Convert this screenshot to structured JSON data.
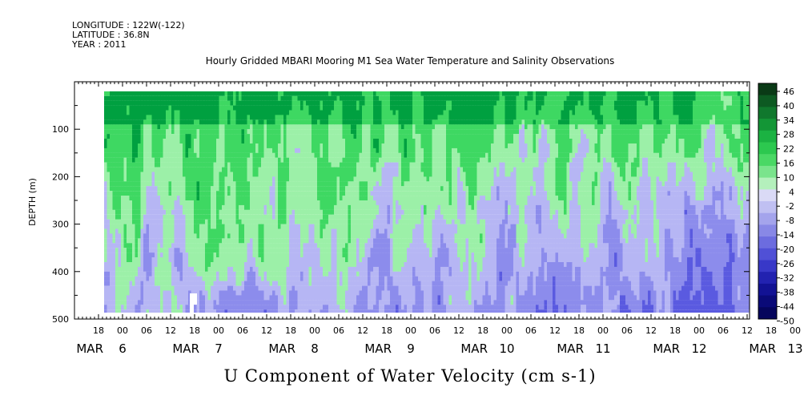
{
  "header": {
    "longitude": "LONGITUDE : 122W(-122)",
    "latitude": "LATITUDE : 36.8N",
    "year": "YEAR : 2011",
    "title": "Hourly Gridded MBARI Mooring M1 Sea Water Temperature and Salinity Observations"
  },
  "footer": {
    "label": "U Component of Water Velocity (cm s-1)"
  },
  "chart_data": {
    "type": "heatmap",
    "title": "Hourly Gridded MBARI Mooring M1 Sea Water Temperature and Salinity Observations",
    "xlabel": "",
    "ylabel": "DEPTH (m)",
    "colorbar_label": "U Component of Water Velocity (cm s-1)",
    "ylim": [
      500,
      0
    ],
    "y_ticks": [
      100,
      200,
      300,
      400,
      500
    ],
    "x_range_hours": [
      "MAR 5 12:00",
      "MAR 13 16:00"
    ],
    "x_hour_ticks": [
      "18",
      "00",
      "06",
      "12",
      "18",
      "00",
      "06",
      "12",
      "18",
      "00",
      "06",
      "12",
      "18",
      "00",
      "06",
      "12",
      "18",
      "00",
      "06",
      "12",
      "18",
      "00",
      "06",
      "12",
      "18",
      "00",
      "06",
      "12",
      "18",
      "00",
      "06",
      "12"
    ],
    "x_date_labels": [
      {
        "month": "MAR",
        "day": "6"
      },
      {
        "month": "MAR",
        "day": "7"
      },
      {
        "month": "MAR",
        "day": "8"
      },
      {
        "month": "MAR",
        "day": "9"
      },
      {
        "month": "MAR",
        "day": "10"
      },
      {
        "month": "MAR",
        "day": "11"
      },
      {
        "month": "MAR",
        "day": "12"
      },
      {
        "month": "MAR",
        "day": "13"
      }
    ],
    "colorbar_levels": [
      "46",
      "40",
      "34",
      "28",
      "22",
      "16",
      "10",
      "4",
      "-2",
      "-8",
      "-14",
      "-20",
      "-26",
      "-32",
      "-38",
      "-44",
      "-50"
    ],
    "data_depth_range": [
      20,
      485
    ],
    "data_time_start": "MAR 5 21:00",
    "colors": {
      "strong_positive": "#00a040",
      "positive": "#3ed862",
      "weak_positive": "#9cf0a8",
      "weak_negative": "#b6b6f4",
      "negative": "#8c8cec",
      "strong_negative": "#5a5ae0"
    }
  }
}
